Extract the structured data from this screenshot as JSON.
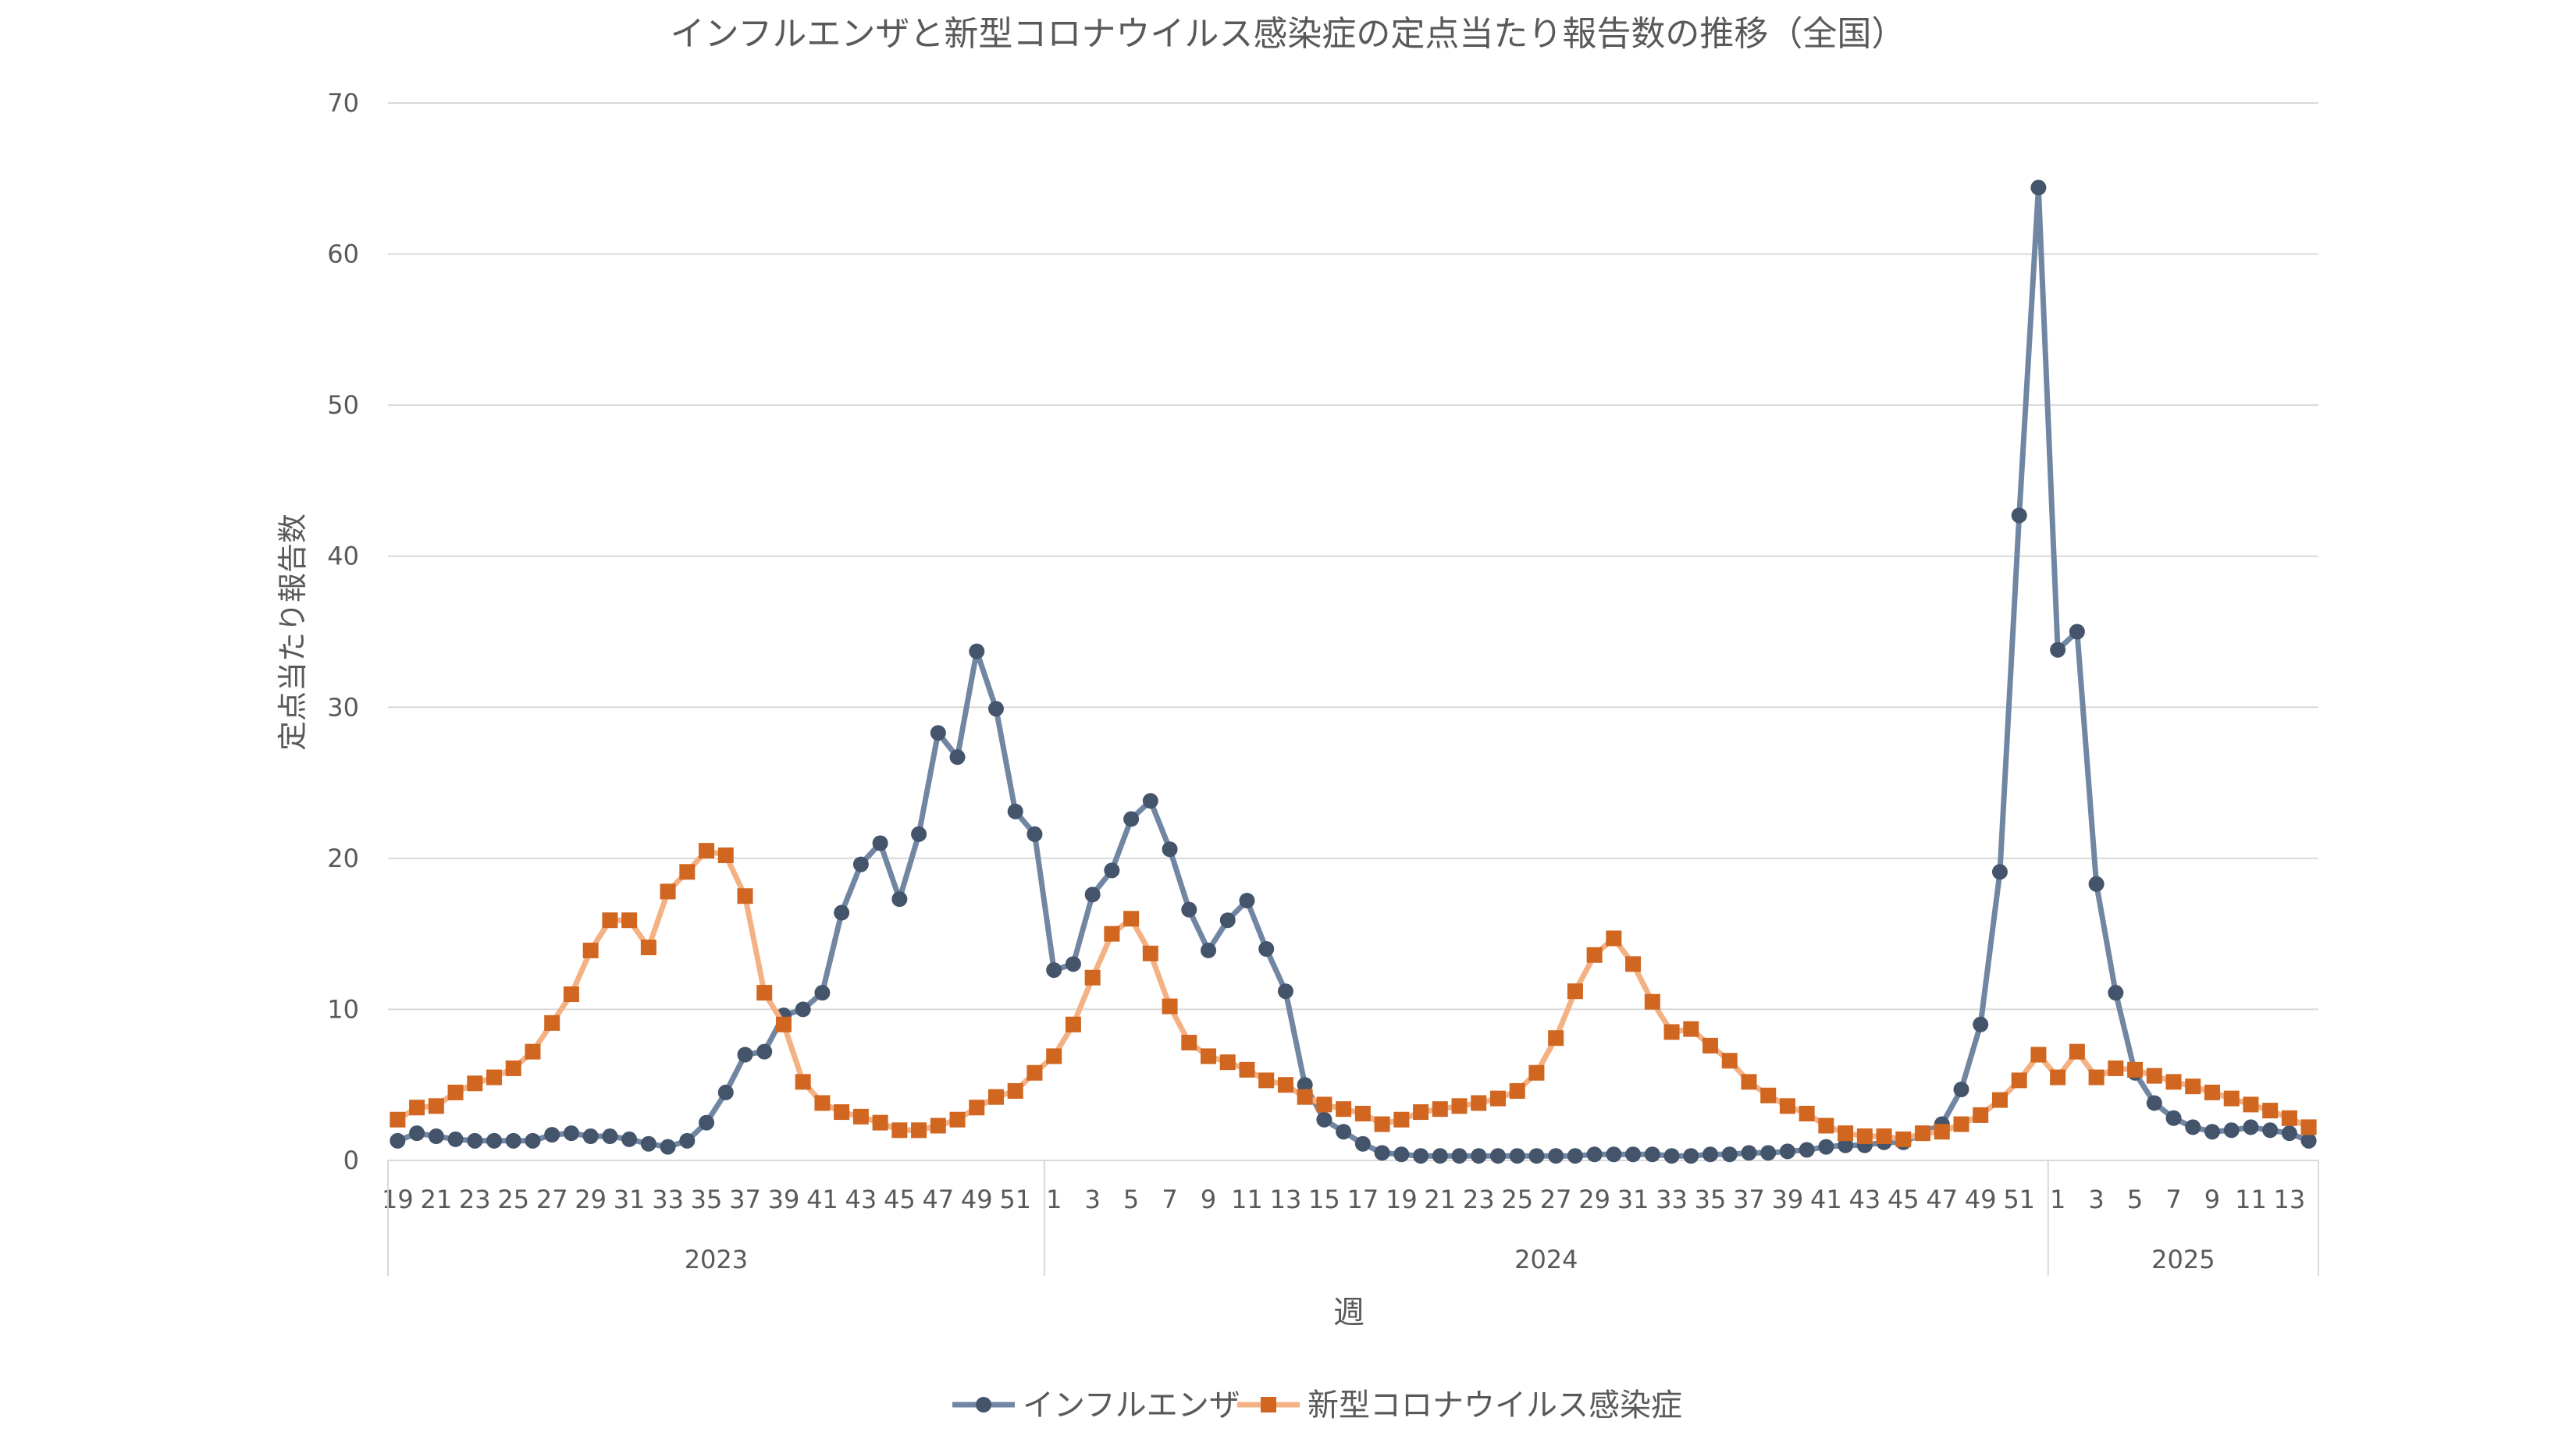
{
  "chart_data": {
    "type": "line",
    "title": "インフルエンザと新型コロナウイルス感染症の定点当たり報告数の推移（全国）",
    "xlabel": "週",
    "ylabel": "定点当たり報告数",
    "ylim": [
      0,
      70
    ],
    "yticks": [
      0,
      10,
      20,
      30,
      40,
      50,
      60,
      70
    ],
    "grid": true,
    "legend_position": "bottom",
    "x_weeks": [
      19,
      20,
      21,
      22,
      23,
      24,
      25,
      26,
      27,
      28,
      29,
      30,
      31,
      32,
      33,
      34,
      35,
      36,
      37,
      38,
      39,
      40,
      41,
      42,
      43,
      44,
      45,
      46,
      47,
      48,
      49,
      50,
      51,
      52,
      1,
      2,
      3,
      4,
      5,
      6,
      7,
      8,
      9,
      10,
      11,
      12,
      13,
      14,
      15,
      16,
      17,
      18,
      19,
      20,
      21,
      22,
      23,
      24,
      25,
      26,
      27,
      28,
      29,
      30,
      31,
      32,
      33,
      34,
      35,
      36,
      37,
      38,
      39,
      40,
      41,
      42,
      43,
      44,
      45,
      46,
      47,
      48,
      49,
      50,
      51,
      52,
      1,
      2,
      3,
      4,
      5,
      6,
      7,
      8,
      9,
      10,
      11,
      12,
      13,
      14
    ],
    "years": [
      {
        "label": "2023",
        "count": 34
      },
      {
        "label": "2024",
        "count": 52
      },
      {
        "label": "2025",
        "count": 14
      }
    ],
    "series": [
      {
        "name": "インフルエンザ",
        "color": "#7186A3",
        "marker": "circle",
        "values": [
          1.3,
          1.8,
          1.6,
          1.4,
          1.3,
          1.3,
          1.3,
          1.3,
          1.7,
          1.8,
          1.6,
          1.6,
          1.4,
          1.1,
          0.9,
          1.3,
          2.5,
          4.5,
          7.0,
          7.2,
          9.6,
          10.0,
          11.1,
          16.4,
          19.6,
          21.0,
          17.3,
          21.6,
          28.3,
          26.7,
          33.7,
          29.9,
          23.1,
          21.6,
          12.6,
          13.0,
          17.6,
          19.2,
          22.6,
          23.8,
          20.6,
          16.6,
          13.9,
          15.9,
          17.2,
          14.0,
          11.2,
          5.0,
          2.7,
          1.9,
          1.1,
          0.5,
          0.4,
          0.3,
          0.3,
          0.3,
          0.3,
          0.3,
          0.3,
          0.3,
          0.3,
          0.3,
          0.4,
          0.4,
          0.4,
          0.4,
          0.3,
          0.3,
          0.4,
          0.4,
          0.5,
          0.5,
          0.6,
          0.7,
          0.9,
          1.0,
          1.0,
          1.2,
          1.2,
          1.8,
          2.4,
          4.7,
          9.0,
          19.1,
          42.7,
          64.4,
          33.8,
          35.0,
          18.3,
          11.1,
          5.8,
          3.8,
          2.8,
          2.2,
          1.9,
          2.0,
          2.2,
          2.0,
          1.8,
          1.3
        ]
      },
      {
        "name": "新型コロナウイルス感染症",
        "color": "#D0661F",
        "line_color": "#F4B183",
        "marker": "square",
        "values": [
          2.7,
          3.5,
          3.6,
          4.5,
          5.1,
          5.5,
          6.1,
          7.2,
          9.1,
          11.0,
          13.9,
          15.9,
          15.9,
          14.1,
          17.8,
          19.1,
          20.5,
          20.2,
          17.5,
          11.1,
          9.0,
          5.2,
          3.8,
          3.2,
          2.9,
          2.5,
          2.0,
          2.0,
          2.3,
          2.7,
          3.5,
          4.2,
          4.6,
          5.8,
          6.9,
          9.0,
          12.1,
          15.0,
          16.0,
          13.7,
          10.2,
          7.8,
          6.9,
          6.5,
          6.0,
          5.3,
          5.0,
          4.2,
          3.7,
          3.4,
          3.1,
          2.4,
          2.7,
          3.2,
          3.4,
          3.6,
          3.8,
          4.1,
          4.6,
          5.8,
          8.1,
          11.2,
          13.6,
          14.7,
          13.0,
          10.5,
          8.5,
          8.7,
          7.6,
          6.6,
          5.2,
          4.3,
          3.6,
          3.1,
          2.3,
          1.8,
          1.6,
          1.6,
          1.4,
          1.8,
          1.9,
          2.4,
          3.0,
          4.0,
          5.3,
          7.0,
          5.5,
          7.2,
          5.5,
          6.1,
          6.0,
          5.6,
          5.2,
          4.9,
          4.5,
          4.1,
          3.7,
          3.3,
          2.8,
          2.2
        ]
      }
    ]
  }
}
